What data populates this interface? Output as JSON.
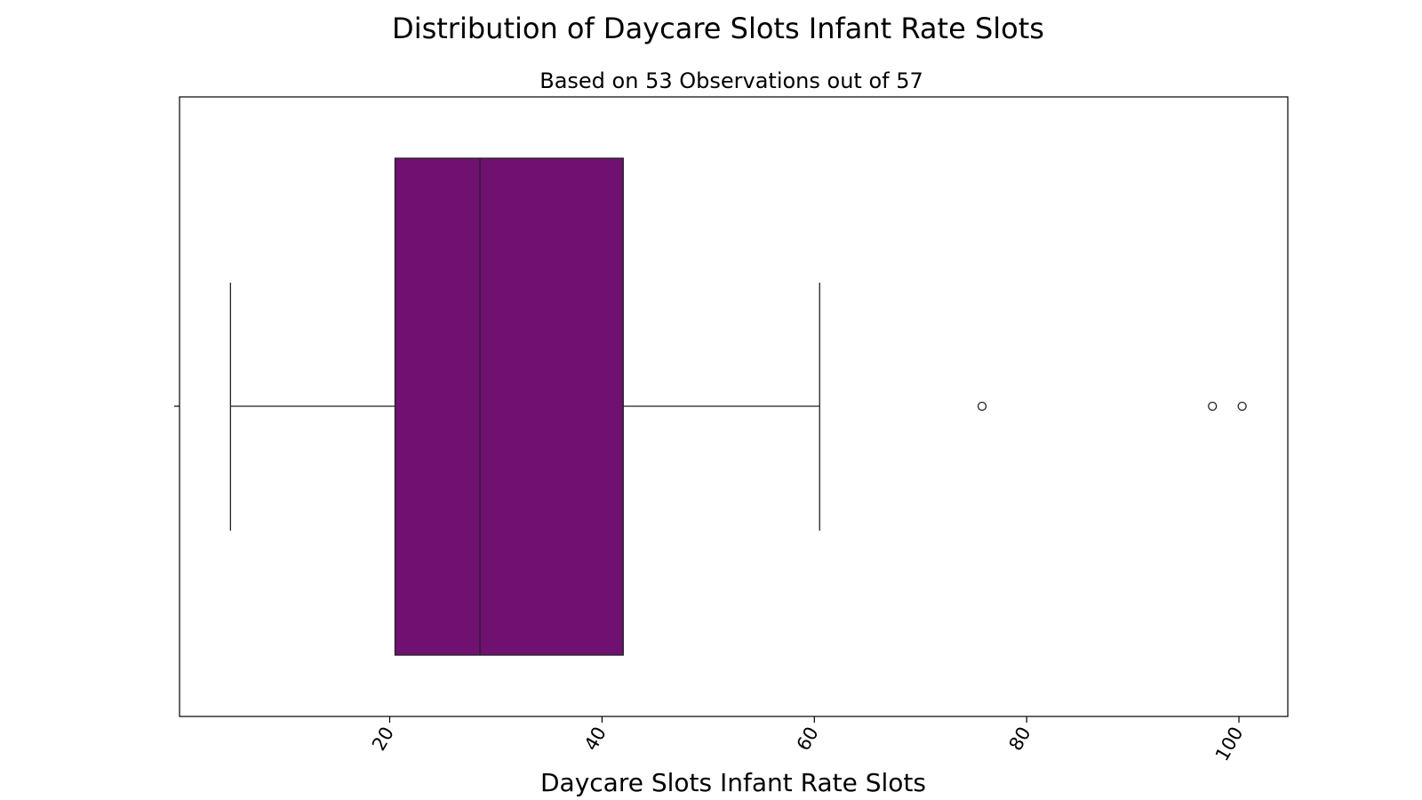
{
  "chart_data": {
    "type": "box",
    "title": "Distribution of Daycare Slots Infant Rate Slots",
    "subtitle": "Based on 53 Observations out of 57",
    "xlabel": "Daycare Slots Infant Rate Slots",
    "xlim": [
      0.2,
      104.6
    ],
    "xticks": [
      20,
      40,
      60,
      80,
      100
    ],
    "tick_rotation_deg": -60,
    "box": {
      "whisker_low": 5.0,
      "q1": 20.5,
      "median": 28.5,
      "q3": 42.0,
      "whisker_high": 60.5
    },
    "outliers": [
      75.8,
      97.5,
      100.3
    ],
    "box_color": "#701070",
    "line_color": "#222222",
    "grid": false,
    "legend": "none"
  }
}
